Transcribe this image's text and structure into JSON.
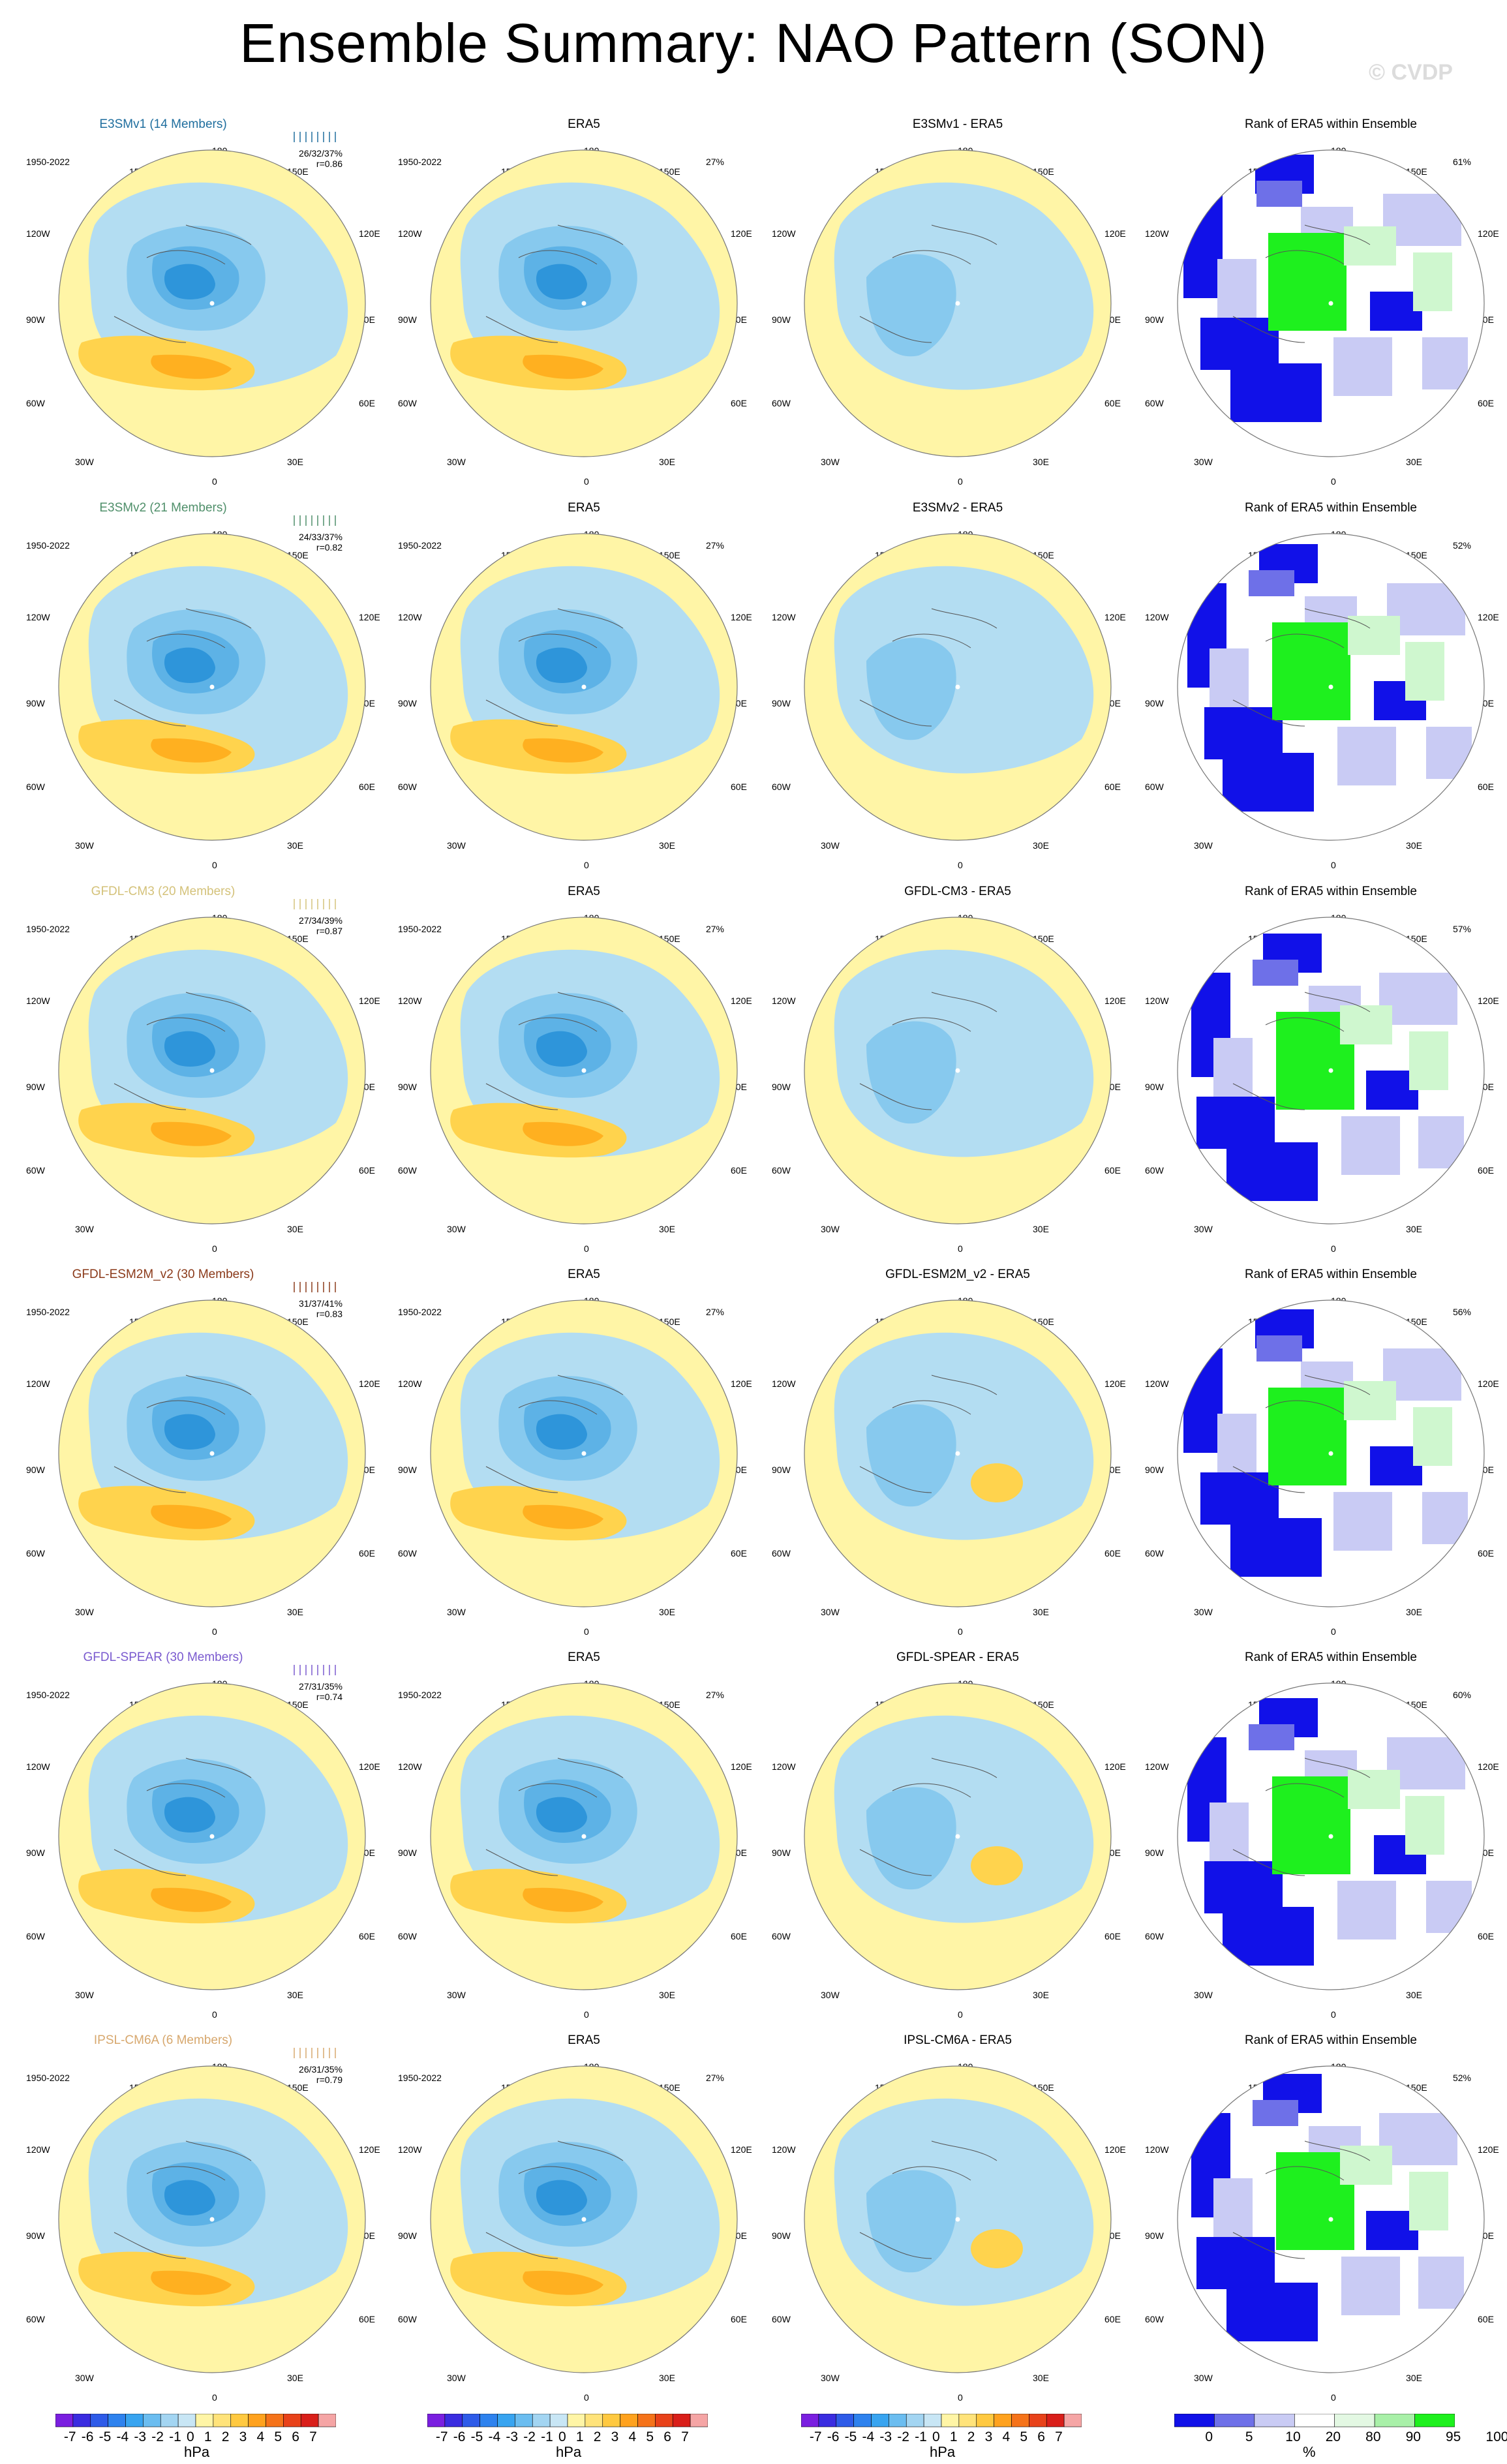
{
  "title": "Ensemble Summary: NAO Pattern (SON)",
  "watermark": "© CVDP",
  "period": "1950-2022",
  "lon_labels": {
    "top": "180",
    "ul": "150W",
    "ur": "150E",
    "l1": "120W",
    "r1": "120E",
    "l2": "90W",
    "r2": "90E",
    "l3": "60W",
    "r3": "60E",
    "bl": "30W",
    "br": "30E",
    "bottom": "0"
  },
  "colors": {
    "yellow": "#FFF5A6",
    "lightblue": "#B3DDF2",
    "blue1": "#87C9EE",
    "blue2": "#5DB2E6",
    "blue3": "#2E95DA",
    "blue4": "#1F6EC9",
    "orange1": "#FFD34D",
    "orange2": "#FFB020",
    "orange3": "#F28A1E",
    "rankblue": "#1111E8",
    "rankmid": "#6E70E8",
    "ranklight": "#C9CBF4",
    "rankgreen": "#1EF01E",
    "ranklightgreen": "#CFF7CF"
  },
  "rows": [
    {
      "model": "E3SMv1 (14 Members)",
      "model_color": "#1F6E9E",
      "stats": "26/32/37%",
      "r": "r=0.86",
      "diff_title": "E3SMv1 - ERA5",
      "obs_pct": "27%",
      "rank_pct": "61%"
    },
    {
      "model": "E3SMv2 (21 Members)",
      "model_color": "#4F8F6A",
      "stats": "24/33/37%",
      "r": "r=0.82",
      "diff_title": "E3SMv2 - ERA5",
      "obs_pct": "27%",
      "rank_pct": "52%"
    },
    {
      "model": "GFDL-CM3 (20 Members)",
      "model_color": "#D4C27A",
      "stats": "27/34/39%",
      "r": "r=0.87",
      "diff_title": "GFDL-CM3 - ERA5",
      "obs_pct": "27%",
      "rank_pct": "57%"
    },
    {
      "model": "GFDL-ESM2M_v2 (30 Members)",
      "model_color": "#8B3A1A",
      "stats": "31/37/41%",
      "r": "r=0.83",
      "diff_title": "GFDL-ESM2M_v2 - ERA5",
      "obs_pct": "27%",
      "rank_pct": "56%"
    },
    {
      "model": "GFDL-SPEAR (30 Members)",
      "model_color": "#7A5ACF",
      "stats": "27/31/35%",
      "r": "r=0.74",
      "diff_title": "GFDL-SPEAR - ERA5",
      "obs_pct": "27%",
      "rank_pct": "60%"
    },
    {
      "model": "IPSL-CM6A (6 Members)",
      "model_color": "#D7A86E",
      "stats": "26/31/35%",
      "r": "r=0.79",
      "diff_title": "IPSL-CM6A - ERA5",
      "obs_pct": "27%",
      "rank_pct": "52%"
    }
  ],
  "obs_title": "ERA5",
  "rank_title": "Rank of ERA5 within Ensemble",
  "colorbar_hpa": {
    "labels": [
      "-7",
      "-6",
      "-5",
      "-4",
      "-3",
      "-2",
      "-1",
      "0",
      "1",
      "2",
      "3",
      "4",
      "5",
      "6",
      "7"
    ],
    "units": "hPa",
    "colors": [
      "#7A1FE0",
      "#3A2CE0",
      "#2E5BE8",
      "#2E82EE",
      "#38A4F0",
      "#6BBDF0",
      "#A3D5F2",
      "#C8E6F5",
      "#FFF5A6",
      "#FFE37A",
      "#FFC940",
      "#FFA21E",
      "#F5731A",
      "#E8421A",
      "#D91F1A",
      "#F5A5A5"
    ]
  },
  "colorbar_rank": {
    "labels": [
      "0",
      "5",
      "10",
      "20",
      "80",
      "90",
      "95",
      "100"
    ],
    "units": "%",
    "colors": [
      "#1111E8",
      "#6E70E8",
      "#C9CBF4",
      "#FFFFFF",
      "#E3F8E3",
      "#A8F0A8",
      "#1EF01E"
    ]
  }
}
